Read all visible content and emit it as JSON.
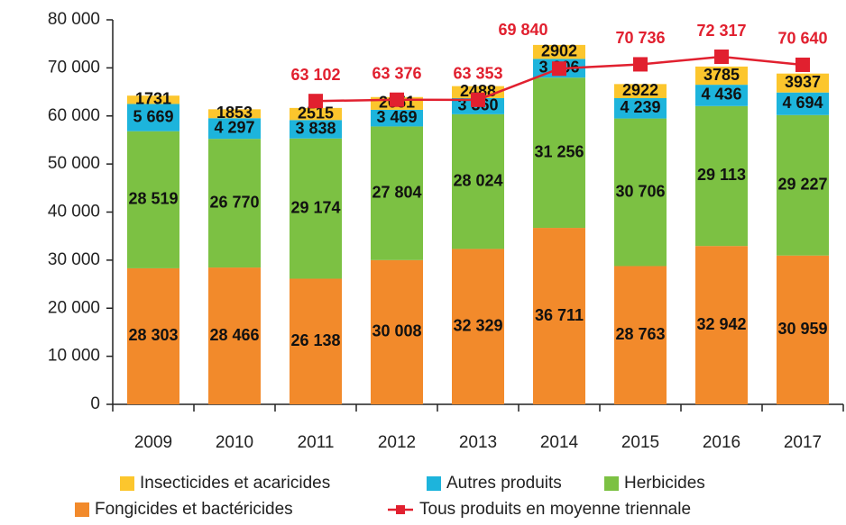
{
  "chart_data": {
    "type": "bar",
    "stacked": true,
    "categories": [
      "2009",
      "2010",
      "2011",
      "2012",
      "2013",
      "2014",
      "2015",
      "2016",
      "2017"
    ],
    "ylim": [
      0,
      80000
    ],
    "yticks": [
      0,
      {
        "value": 10000,
        "label": "10 000"
      },
      {
        "value": 20000,
        "label": "20 000"
      },
      {
        "value": 30000,
        "label": "30 000"
      },
      {
        "value": 40000,
        "label": "40 000"
      },
      {
        "value": 50000,
        "label": "50 000"
      },
      {
        "value": 60000,
        "label": "60 000"
      },
      {
        "value": 70000,
        "label": "70 000"
      },
      {
        "value": 80000,
        "label": "80 000"
      }
    ],
    "grid": false,
    "legend": "bottom",
    "series": [
      {
        "name": "Insecticides et acaricides",
        "color": "#fcc62d",
        "values": [
          1731,
          1853,
          2515,
          2651,
          2488,
          2902,
          2922,
          3785,
          3937
        ]
      },
      {
        "name": "Autres produits",
        "color": "#1db4dc",
        "values": [
          5669,
          4297,
          3838,
          3469,
          3360,
          3906,
          4239,
          4436,
          4694
        ],
        "value_labels": [
          "5 669",
          "4 297",
          "3 838",
          "3 469",
          "3 360",
          "3 906",
          "4 239",
          "4 436",
          "4 694"
        ]
      },
      {
        "name": "Herbicides",
        "color": "#7cc143",
        "values": [
          28519,
          26770,
          29174,
          27804,
          28024,
          31256,
          30706,
          29113,
          29227
        ],
        "value_labels": [
          "28 519",
          "26 770",
          "29 174",
          "27 804",
          "28 024",
          "31 256",
          "30 706",
          "29 113",
          "29 227"
        ]
      },
      {
        "name": "Fongicides et bactéricides",
        "color": "#f28a2b",
        "values": [
          28303,
          28466,
          26138,
          30008,
          32329,
          36711,
          28763,
          32942,
          30959
        ],
        "value_labels": [
          "28 303",
          "28 466",
          "26 138",
          "30 008",
          "32 329",
          "36 711",
          "28 763",
          "32 942",
          "30 959"
        ]
      },
      {
        "name": "Tous produits en moyenne triennale",
        "type": "line",
        "color": "#e1202f",
        "values": [
          null,
          null,
          63102,
          63376,
          63353,
          69840,
          70736,
          72317,
          70640
        ],
        "value_labels": [
          null,
          null,
          "63 102",
          "63 376",
          "63 353",
          "69 840",
          "70 736",
          "72 317",
          "70 640"
        ]
      }
    ]
  }
}
